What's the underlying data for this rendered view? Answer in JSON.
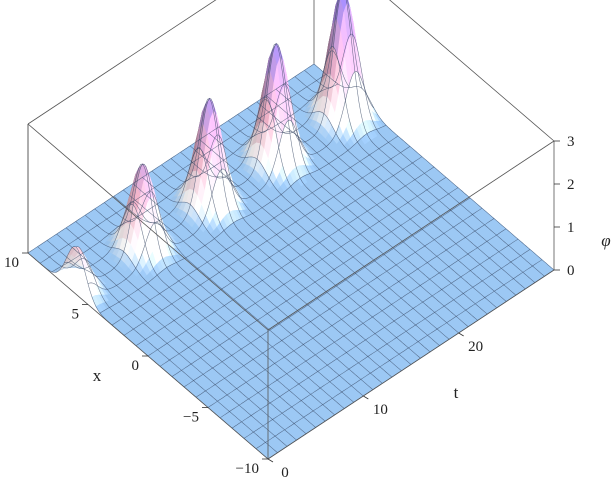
{
  "chart_data": {
    "type": "surface3d",
    "title": "",
    "axes": {
      "t": {
        "label": "t",
        "range": [
          0,
          30
        ],
        "ticks": [
          0,
          10,
          20
        ],
        "tick_labels": [
          "0",
          "10",
          "20"
        ]
      },
      "x": {
        "label": "x",
        "range": [
          -10,
          10
        ],
        "ticks": [
          -10,
          -5,
          0,
          5,
          10
        ],
        "tick_labels": [
          "−10",
          "−5",
          "0",
          "5",
          "10"
        ]
      },
      "z": {
        "label": "φ",
        "range": [
          0,
          3
        ],
        "ticks": [
          0,
          1,
          2,
          3
        ],
        "tick_labels": [
          "0",
          "1",
          "2",
          "3"
        ]
      }
    },
    "peaks": [
      {
        "t": 0,
        "x": 6,
        "height": 1.1
      },
      {
        "t": 7,
        "x": 6,
        "height": 2.0
      },
      {
        "t": 14,
        "x": 6,
        "height": 2.5
      },
      {
        "t": 21,
        "x": 6,
        "height": 2.75
      },
      {
        "t": 28,
        "x": 6,
        "height": 3.0
      }
    ],
    "peak_width_x": 1.1,
    "peak_width_t": 1.4,
    "grid_t_lines": 30,
    "grid_x_lines": 20,
    "box": true,
    "colors": {
      "base": "#9cc8f4",
      "base_mesh": "#3a4a66",
      "peak_low": "#ffffff",
      "peak_mid": "#f1b4c8",
      "peak_high": "#8d7bea",
      "peak_dark": "#c43b63"
    }
  }
}
